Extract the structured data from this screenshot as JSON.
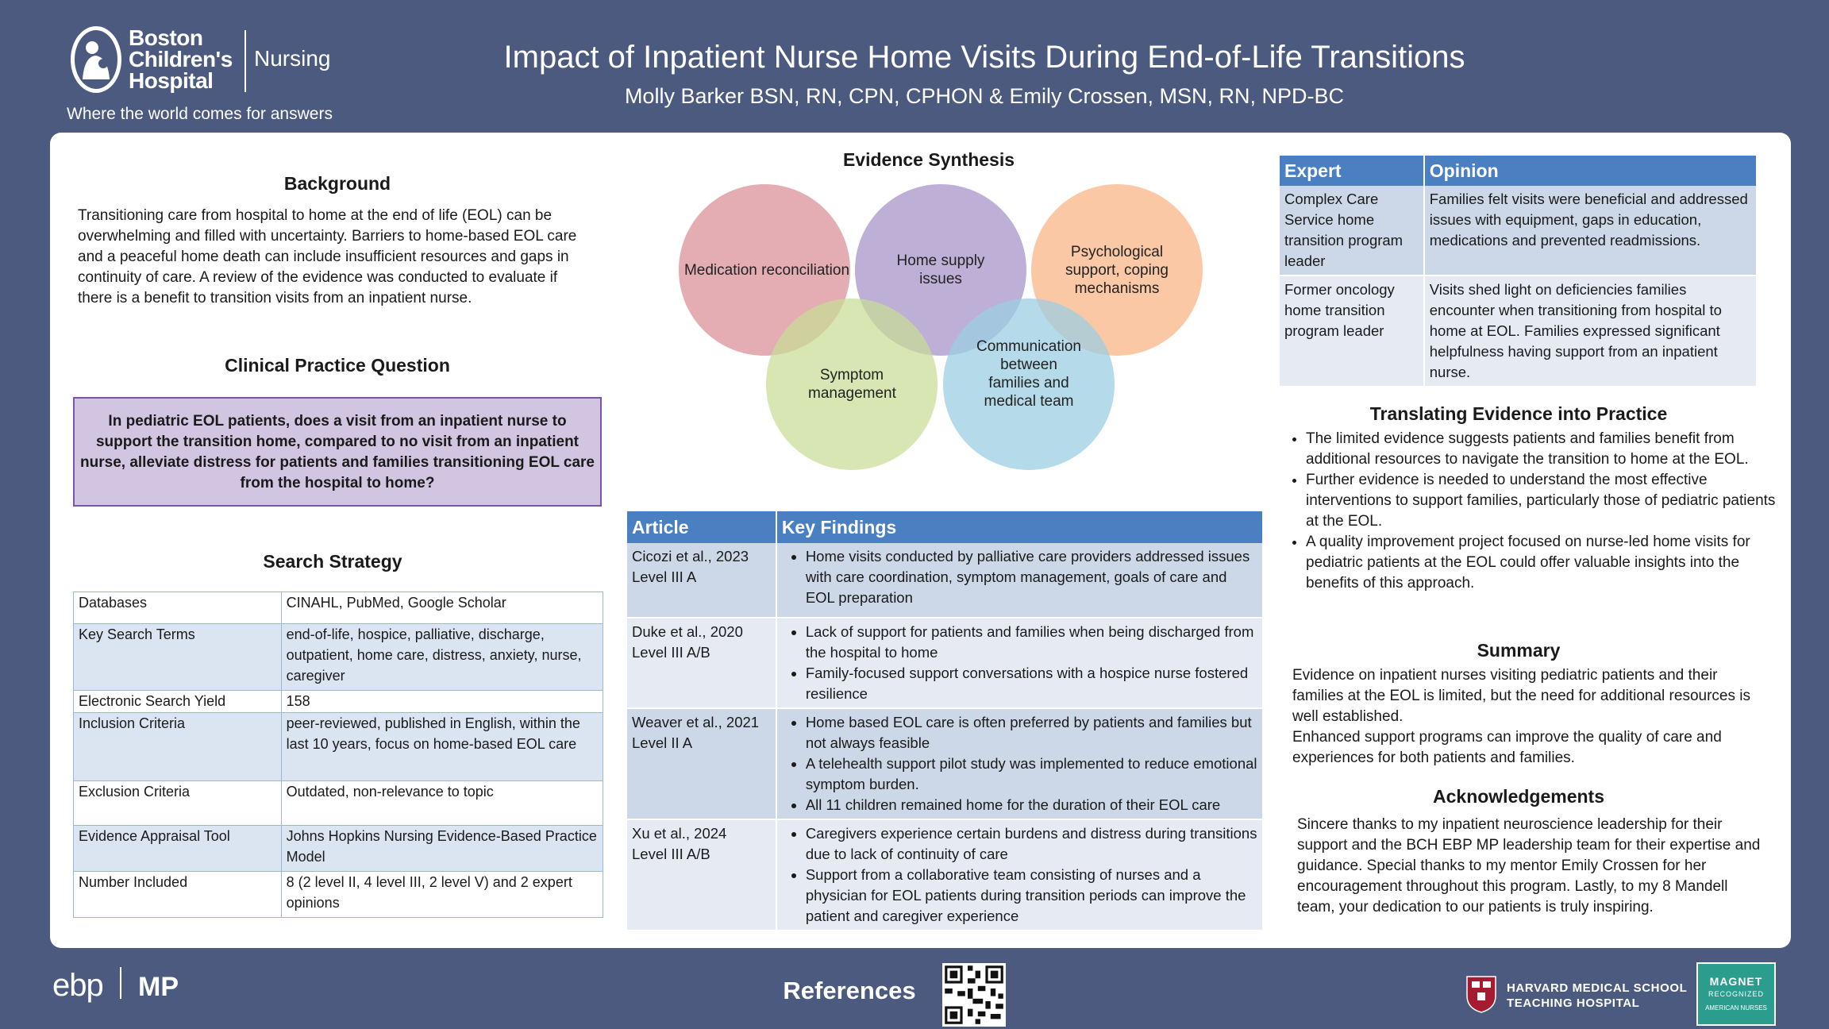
{
  "header": {
    "logo_name_line1": "Boston",
    "logo_name_line2": "Children's",
    "logo_name_line3": "Hospital",
    "logo_nursing": "Nursing",
    "tagline": "Where the world comes for answers",
    "title": "Impact of Inpatient Nurse Home Visits During End-of-Life Transitions",
    "authors": "Molly Barker BSN, RN, CPN, CPHON & Emily Crossen, MSN, RN, NPD-BC"
  },
  "background": {
    "heading": "Background",
    "text": "Transitioning care from hospital to home at the end of life (EOL) can be overwhelming and filled with uncertainty. Barriers to home-based EOL care and a peaceful home death can include insufficient resources and gaps in continuity of care. A review of the evidence was conducted to evaluate if there is a benefit to transition visits from an inpatient nurse."
  },
  "cpq": {
    "heading": "Clinical Practice Question",
    "text": "In pediatric EOL patients, does a visit from an inpatient nurse to support the transition home, compared to no visit from an inpatient nurse, alleviate distress for patients and families transitioning EOL care from the hospital to home?"
  },
  "search": {
    "heading": "Search Strategy",
    "rows": [
      {
        "label": "Databases",
        "value": "CINAHL, PubMed, Google Scholar"
      },
      {
        "label": "Key Search Terms",
        "value": "end-of-life, hospice, palliative, discharge, outpatient, home care, distress, anxiety, nurse, caregiver"
      },
      {
        "label": "Electronic Search Yield",
        "value": "158"
      },
      {
        "label": "Inclusion Criteria",
        "value": "peer-reviewed, published in English, within the last 10 years, focus on home-based EOL care"
      },
      {
        "label": "Exclusion Criteria",
        "value": "Outdated, non-relevance to topic"
      },
      {
        "label": "Evidence Appraisal Tool",
        "value": "Johns Hopkins Nursing Evidence-Based Practice Model"
      },
      {
        "label": "Number Included",
        "value": "8 (2 level II, 4 level III, 2 level V) and 2 expert opinions"
      }
    ]
  },
  "synthesis": {
    "heading": "Evidence Synthesis",
    "circles": [
      {
        "label": "Medication reconciliation",
        "color": "#e1a2a8"
      },
      {
        "label": "Home supply issues",
        "color": "#b9a6d4"
      },
      {
        "label": "Psychological support, coping mechanisms",
        "color": "#f8c19a"
      },
      {
        "label": "Symptom management",
        "color": "#cfe0a3"
      },
      {
        "label": "Communication between families and medical team",
        "color": "#a9d4e6"
      }
    ]
  },
  "findings": {
    "col_article": "Article",
    "col_findings": "Key Findings",
    "rows": [
      {
        "article": "Cicozi et al., 2023",
        "level": "Level III A",
        "items": [
          "Home visits conducted by palliative care providers addressed issues with care coordination, symptom management, goals of care and EOL preparation"
        ]
      },
      {
        "article": "Duke et al., 2020",
        "level": "Level III A/B",
        "items": [
          "Lack of support for patients and families when being discharged from the hospital to home",
          "Family-focused support conversations with a hospice nurse fostered resilience"
        ]
      },
      {
        "article": "Weaver et al., 2021",
        "level": "Level II A",
        "items": [
          "Home based EOL care is often preferred by patients and families but not always feasible",
          "A telehealth support pilot study was implemented to reduce emotional symptom burden.",
          "All 11 children remained home for the duration of their EOL care"
        ]
      },
      {
        "article": "Xu et al., 2024",
        "level": "Level III A/B",
        "items": [
          "Caregivers experience certain burdens and distress during transitions due to lack of continuity of care",
          "Support from a collaborative team consisting of nurses and a physician for EOL patients during transition periods can improve the patient and caregiver experience"
        ]
      }
    ]
  },
  "expert": {
    "col_expert": "Expert",
    "col_opinion": "Opinion",
    "rows": [
      {
        "expert": "Complex Care Service home transition program leader",
        "opinion": "Families felt visits were beneficial and addressed issues with equipment, gaps in education, medications and prevented readmissions."
      },
      {
        "expert": "Former oncology home transition program leader",
        "opinion": "Visits shed light on deficiencies families encounter when transitioning from hospital to home at EOL. Families expressed significant helpfulness having support from an inpatient nurse."
      }
    ]
  },
  "translating": {
    "heading": "Translating Evidence into Practice",
    "items": [
      "The limited evidence suggests patients and families benefit from additional resources to navigate the transition to home at the EOL.",
      "Further evidence is needed to understand the most effective interventions to support families, particularly those of pediatric patients at the EOL.",
      "A quality improvement project focused on nurse-led home visits for pediatric patients at the EOL could offer valuable insights into the benefits of this approach."
    ]
  },
  "summary": {
    "heading": "Summary",
    "p1": "Evidence on inpatient nurses visiting pediatric patients and their families at the EOL is limited, but the need for additional resources is well established.",
    "p2": "Enhanced support programs can improve the quality of care and experiences for both patients and families."
  },
  "acknowledgements": {
    "heading": "Acknowledgements",
    "text": "Sincere thanks to my inpatient neuroscience leadership for their support and the BCH EBP MP leadership team for their expertise and guidance. Special thanks to my mentor Emily Crossen for her encouragement throughout this program. Lastly, to my 8 Mandell team, your dedication to our patients is truly inspiring."
  },
  "footer": {
    "ebp_logo": "ebp",
    "ebp_mp": "MP",
    "references": "References",
    "hms_line1": "HARVARD MEDICAL SCHOOL",
    "hms_line2": "TEACHING HOSPITAL",
    "magnet_line1": "MAGNET",
    "magnet_line2": "RECOGNIZED",
    "magnet_line3": "AMERICAN NURSES"
  }
}
